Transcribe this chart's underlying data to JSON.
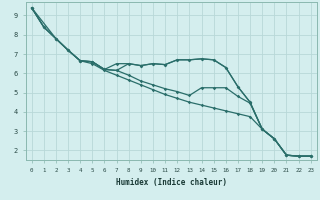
{
  "xlabel": "Humidex (Indice chaleur)",
  "bg_color": "#d4eeee",
  "grid_color": "#b8d8d8",
  "line_color": "#2a6e6a",
  "spine_color": "#8ab8b0",
  "xlim": [
    -0.5,
    23.5
  ],
  "ylim": [
    1.5,
    9.7
  ],
  "xticks": [
    0,
    1,
    2,
    3,
    4,
    5,
    6,
    7,
    8,
    9,
    10,
    11,
    12,
    13,
    14,
    15,
    16,
    17,
    18,
    19,
    20,
    21,
    22,
    23
  ],
  "yticks": [
    2,
    3,
    4,
    5,
    6,
    7,
    8,
    9
  ],
  "line1_x": [
    0,
    1,
    2,
    3,
    4,
    5,
    6,
    7,
    8,
    9,
    10,
    11,
    12,
    13,
    14,
    15,
    16,
    17,
    18,
    19,
    20,
    21,
    22,
    23
  ],
  "line1_y": [
    9.4,
    8.4,
    7.8,
    7.2,
    6.65,
    6.6,
    6.2,
    6.15,
    6.5,
    6.4,
    6.5,
    6.45,
    6.7,
    6.7,
    6.75,
    6.7,
    6.3,
    5.3,
    4.5,
    3.1,
    2.6,
    1.75,
    1.7,
    1.7
  ],
  "line2_x": [
    0,
    2,
    3,
    4,
    5,
    6,
    7,
    8,
    9,
    10,
    11,
    12,
    13,
    14,
    15,
    16,
    17,
    18,
    19,
    20,
    21,
    22,
    23
  ],
  "line2_y": [
    9.4,
    7.8,
    7.2,
    6.65,
    6.6,
    6.2,
    6.5,
    6.5,
    6.4,
    6.5,
    6.45,
    6.7,
    6.7,
    6.75,
    6.7,
    6.3,
    5.3,
    4.5,
    3.1,
    2.6,
    1.75,
    1.7,
    1.7
  ],
  "line3_x": [
    0,
    1,
    2,
    3,
    4,
    5,
    6,
    7,
    8,
    9,
    10,
    11,
    12,
    13,
    14,
    15,
    16,
    17,
    18,
    19,
    20,
    21,
    22,
    23
  ],
  "line3_y": [
    9.4,
    8.4,
    7.8,
    7.2,
    6.65,
    6.6,
    6.2,
    6.15,
    5.9,
    5.6,
    5.4,
    5.2,
    5.05,
    4.85,
    5.25,
    5.25,
    5.25,
    4.8,
    4.45,
    3.1,
    2.6,
    1.75,
    1.7,
    1.7
  ],
  "line4_x": [
    0,
    1,
    2,
    3,
    4,
    5,
    6,
    7,
    8,
    9,
    10,
    11,
    12,
    13,
    14,
    15,
    16,
    17,
    18,
    19,
    20,
    21,
    22,
    23
  ],
  "line4_y": [
    9.4,
    8.4,
    7.8,
    7.2,
    6.65,
    6.5,
    6.15,
    5.9,
    5.65,
    5.4,
    5.15,
    4.9,
    4.7,
    4.5,
    4.35,
    4.2,
    4.05,
    3.9,
    3.75,
    3.1,
    2.6,
    1.75,
    1.7,
    1.7
  ]
}
